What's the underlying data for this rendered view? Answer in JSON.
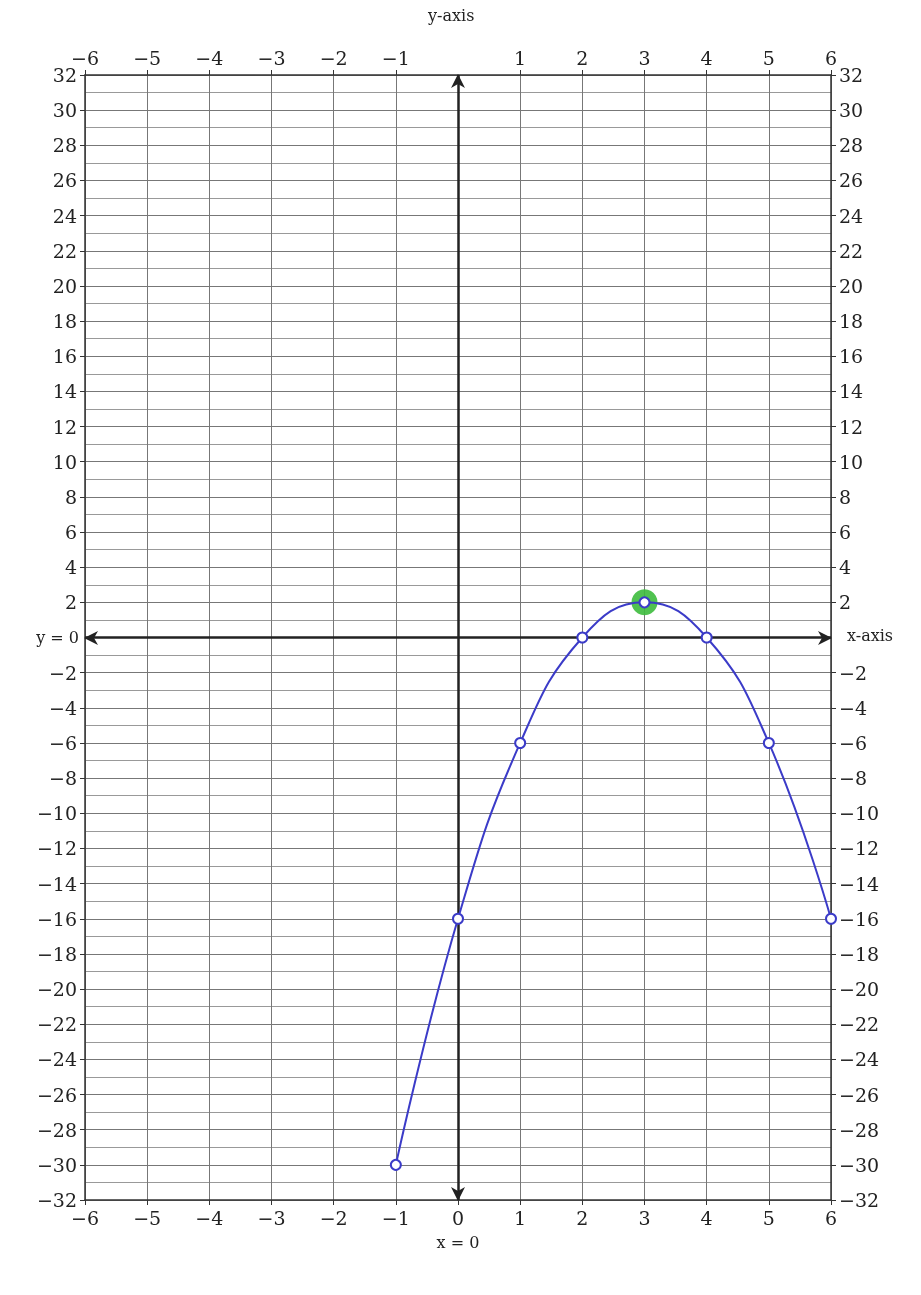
{
  "chart_data": {
    "type": "line",
    "xlabel": "x-axis",
    "ylabel": "y-axis",
    "xlim": [
      -6,
      6
    ],
    "xticks": [
      -6,
      -5,
      -4,
      -3,
      -2,
      -1,
      0,
      1,
      2,
      3,
      4,
      5,
      6
    ],
    "x2lim": [
      -6,
      6
    ],
    "x2ticks": [
      -6,
      -5,
      -4,
      -3,
      -2,
      -1,
      1,
      2,
      3,
      4,
      5,
      6
    ],
    "ylim": [
      -32,
      32
    ],
    "yticks": [
      -32,
      -30,
      -28,
      -26,
      -24,
      -22,
      -20,
      -18,
      -16,
      -14,
      -12,
      -10,
      -8,
      -6,
      -4,
      -2,
      2,
      4,
      6,
      8,
      10,
      12,
      14,
      16,
      18,
      20,
      22,
      24,
      26,
      28,
      30,
      32
    ],
    "y2lim": [
      -32,
      32
    ],
    "y2ticks": [
      -32,
      -30,
      -28,
      -26,
      -24,
      -22,
      -20,
      -18,
      -16,
      -14,
      -12,
      -10,
      -8,
      -6,
      -4,
      -2,
      2,
      4,
      6,
      8,
      10,
      12,
      14,
      16,
      18,
      20,
      22,
      24,
      26,
      28,
      30,
      32
    ],
    "grid": true,
    "marker": "circle",
    "line_style": "solid",
    "series": [
      {
        "color": "#3b3bc8",
        "x": [
          -1,
          0,
          1,
          2,
          3,
          4,
          5,
          6
        ],
        "values": [
          -30,
          -16,
          -6,
          0,
          2,
          0,
          -6,
          -16
        ]
      },
      {
        "type": "scatter",
        "color": "#3dbb3d",
        "x": [
          3
        ],
        "values": [
          2
        ]
      }
    ],
    "ref_lines": [
      {
        "axis": "y",
        "value": 0,
        "label": "y = 0",
        "color": "#222222",
        "line_style": "solid"
      },
      {
        "axis": "x",
        "value": 0,
        "label": "x = 0",
        "color": "#222222",
        "line_style": "solid"
      }
    ]
  }
}
